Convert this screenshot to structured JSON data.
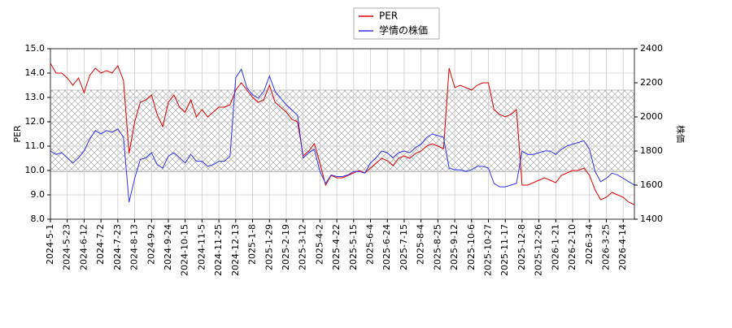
{
  "chart_data": {
    "type": "line",
    "categories": [
      "2024-5-1",
      null,
      null,
      "2024-5-23",
      null,
      null,
      "2024-6-12",
      null,
      null,
      "2024-7-2",
      null,
      null,
      "2024-7-23",
      null,
      null,
      "2024-8-13",
      null,
      null,
      "2024-9-2",
      null,
      null,
      "2024-9-24",
      null,
      null,
      "2024-10-15",
      null,
      null,
      "2024-11-5",
      null,
      null,
      "2024-11-25",
      null,
      null,
      "2024-12-13",
      null,
      null,
      "2025-1-8",
      null,
      null,
      "2025-1-29",
      null,
      null,
      "2025-2-19",
      null,
      null,
      "2025-3-12",
      null,
      null,
      "2025-4-2",
      null,
      null,
      "2025-4-22",
      null,
      null,
      "2025-5-15",
      null,
      null,
      "2025-6-4",
      null,
      null,
      "2025-6-24",
      null,
      null,
      "2025-7-15",
      null,
      null,
      "2025-8-4",
      null,
      null,
      "2025-8-25",
      null,
      null,
      "2025-9-12",
      null,
      null,
      "2025-10-6",
      null,
      null,
      "2025-10-27",
      null,
      null,
      "2025-11-17",
      null,
      null,
      "2025-12-8",
      null,
      null,
      "2025-12-26",
      null,
      null,
      "2026-1-21",
      null,
      null,
      "2026-2-10",
      null,
      null,
      "2026-3-4",
      null,
      null,
      "2026-3-25",
      null,
      null,
      "2026-4-14",
      null,
      null
    ],
    "series": [
      {
        "name": "PER",
        "color": "#e00000",
        "values": [
          14.4,
          14.0,
          14.0,
          13.8,
          13.5,
          13.8,
          13.2,
          13.9,
          14.2,
          14.0,
          14.1,
          14.0,
          14.3,
          13.7,
          10.7,
          12.0,
          12.8,
          12.9,
          13.1,
          12.3,
          11.8,
          12.8,
          13.1,
          12.6,
          12.4,
          12.9,
          12.2,
          12.5,
          12.2,
          12.4,
          12.6,
          12.6,
          12.7,
          13.3,
          13.6,
          13.3,
          13.0,
          12.8,
          12.9,
          13.5,
          12.8,
          12.6,
          12.4,
          12.1,
          12.0,
          10.6,
          10.8,
          11.1,
          10.3,
          9.4,
          9.8,
          9.7,
          9.7,
          9.8,
          9.9,
          10.0,
          9.9,
          10.1,
          10.3,
          10.5,
          10.4,
          10.2,
          10.5,
          10.6,
          10.5,
          10.7,
          10.8,
          11.0,
          11.1,
          11.0,
          10.9,
          14.2,
          13.4,
          13.5,
          13.4,
          13.3,
          13.5,
          13.6,
          13.6,
          12.5,
          12.3,
          12.2,
          12.3,
          12.5,
          9.4,
          9.4,
          9.5,
          9.6,
          9.7,
          9.6,
          9.5,
          9.8,
          9.9,
          10.0,
          10.0,
          10.1,
          9.8,
          9.2,
          8.8,
          8.9,
          9.1,
          9.0,
          8.9,
          8.7,
          8.6
        ]
      },
      {
        "name": "学情の株価",
        "color": "#3333ee",
        "axis": "y2",
        "values": [
          1800,
          1780,
          1790,
          1760,
          1730,
          1760,
          1800,
          1870,
          1920,
          1900,
          1920,
          1910,
          1930,
          1880,
          1500,
          1640,
          1750,
          1760,
          1790,
          1720,
          1700,
          1770,
          1790,
          1760,
          1730,
          1780,
          1740,
          1740,
          1710,
          1720,
          1740,
          1740,
          1770,
          2230,
          2280,
          2170,
          2130,
          2110,
          2150,
          2240,
          2150,
          2110,
          2070,
          2040,
          2010,
          1760,
          1790,
          1810,
          1680,
          1610,
          1660,
          1650,
          1650,
          1660,
          1680,
          1680,
          1670,
          1730,
          1760,
          1800,
          1790,
          1760,
          1790,
          1800,
          1790,
          1820,
          1840,
          1880,
          1900,
          1890,
          1880,
          1700,
          1690,
          1690,
          1680,
          1690,
          1710,
          1710,
          1700,
          1610,
          1590,
          1590,
          1600,
          1610,
          1800,
          1780,
          1780,
          1790,
          1800,
          1800,
          1780,
          1810,
          1830,
          1840,
          1850,
          1860,
          1810,
          1680,
          1620,
          1640,
          1670,
          1660,
          1640,
          1620,
          1600
        ]
      }
    ],
    "ylabel": "PER",
    "y2label": "株価",
    "ylim": [
      8,
      15
    ],
    "yticks": [
      {
        "value": 8,
        "label": "8.0"
      },
      {
        "value": 9,
        "label": "9.0"
      },
      {
        "value": 10,
        "label": "10.0"
      },
      {
        "value": 11,
        "label": "11.0"
      },
      {
        "value": 12,
        "label": "12.0"
      },
      {
        "value": 13,
        "label": "13.0"
      },
      {
        "value": 14,
        "label": "14.0"
      },
      {
        "value": 15,
        "label": "15.0"
      }
    ],
    "y2lim": [
      1400,
      2400
    ],
    "y2ticks": [
      1400,
      1600,
      1800,
      2000,
      2200,
      2400
    ],
    "band": [
      9.95,
      13.3
    ],
    "grid": true,
    "legend": "top"
  }
}
